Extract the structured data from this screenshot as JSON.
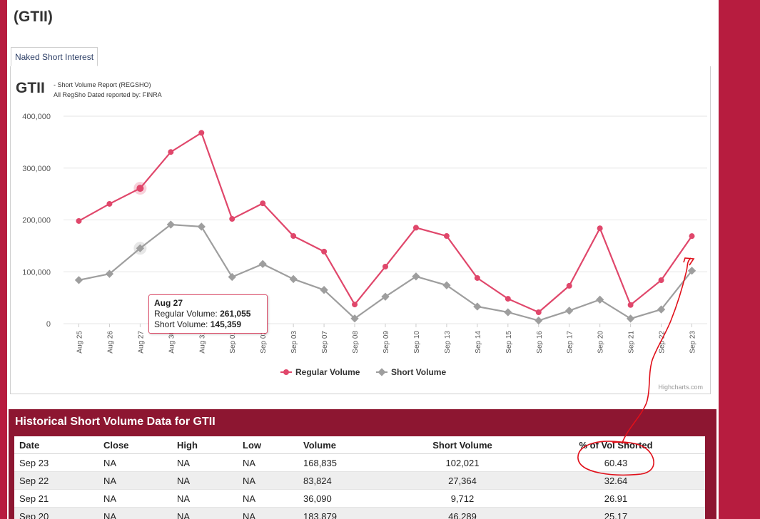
{
  "page": {
    "title": "(GTII)"
  },
  "tabs": [
    {
      "label": "Naked Short Interest"
    }
  ],
  "chart_header": {
    "symbol": "GTII",
    "subtitle_line1": "- Short Volume Report  (REGSHO)",
    "subtitle_line2": "All RegSho Dated reported by: FINRA"
  },
  "chart_data": {
    "type": "line",
    "categories": [
      "Aug 25",
      "Aug 26",
      "Aug 27",
      "Aug 30",
      "Aug 31",
      "Sep 01",
      "Sep 02",
      "Sep 03",
      "Sep 07",
      "Sep 08",
      "Sep 09",
      "Sep 10",
      "Sep 13",
      "Sep 14",
      "Sep 15",
      "Sep 16",
      "Sep 17",
      "Sep 20",
      "Sep 21",
      "Sep 22",
      "Sep 23"
    ],
    "series": [
      {
        "name": "Regular Volume",
        "color": "#e0476b",
        "values": [
          198000,
          231000,
          261055,
          331000,
          368000,
          202000,
          232000,
          169000,
          139000,
          37000,
          110000,
          185000,
          169000,
          88000,
          48000,
          22000,
          73000,
          183879,
          36090,
          83824,
          168835
        ]
      },
      {
        "name": "Short Volume",
        "color": "#9e9e9e",
        "values": [
          84000,
          96000,
          145359,
          191000,
          187000,
          90000,
          115000,
          86000,
          65000,
          10000,
          52000,
          91000,
          74000,
          33000,
          22000,
          6000,
          25000,
          46289,
          9712,
          27364,
          102021
        ]
      }
    ],
    "yticks": [
      "0",
      "100,000",
      "200,000",
      "300,000",
      "400,000"
    ],
    "ylim": [
      0,
      400000
    ],
    "grid": true,
    "legend_position": "bottom-center",
    "credits": "Highcharts.com",
    "tooltip": {
      "date": "Aug 27",
      "regular_label": "Regular Volume:",
      "regular_value": "261,055",
      "short_label": "Short Volume:",
      "short_value": "145,359"
    }
  },
  "history": {
    "title": "Historical Short Volume Data for GTII",
    "columns": [
      "Date",
      "Close",
      "High",
      "Low",
      "Volume",
      "Short Volume",
      "% of Vol Shorted"
    ],
    "rows": [
      [
        "Sep 23",
        "NA",
        "NA",
        "NA",
        "168,835",
        "102,021",
        "60.43"
      ],
      [
        "Sep 22",
        "NA",
        "NA",
        "NA",
        "83,824",
        "27,364",
        "32.64"
      ],
      [
        "Sep 21",
        "NA",
        "NA",
        "NA",
        "36,090",
        "9,712",
        "26.91"
      ],
      [
        "Sep 20",
        "NA",
        "NA",
        "NA",
        "183,879",
        "46,289",
        "25.17"
      ]
    ]
  },
  "annotation": {
    "color": "#e0101a"
  }
}
